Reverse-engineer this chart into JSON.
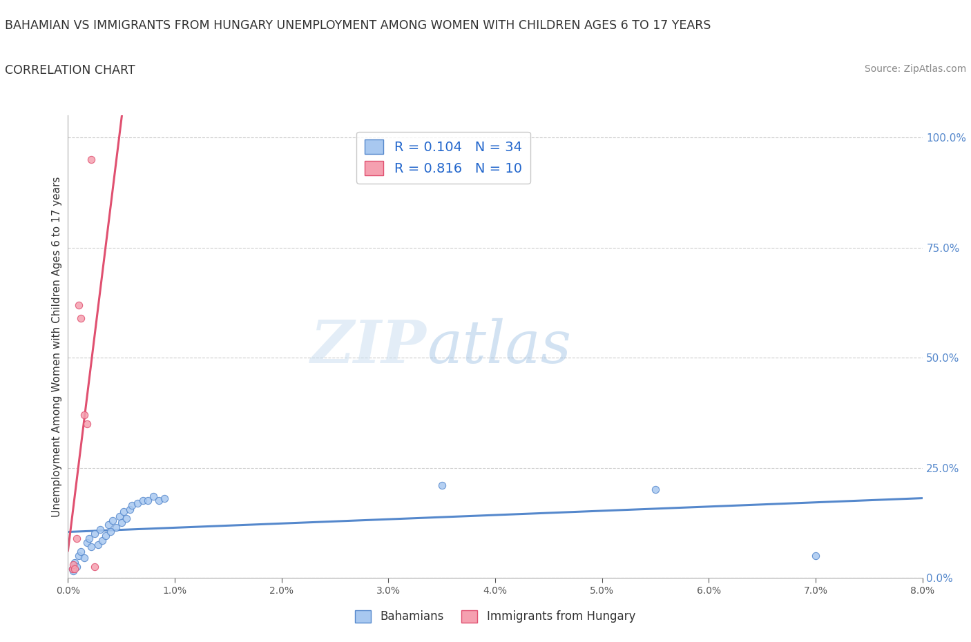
{
  "title_line1": "BAHAMIAN VS IMMIGRANTS FROM HUNGARY UNEMPLOYMENT AMONG WOMEN WITH CHILDREN AGES 6 TO 17 YEARS",
  "title_line2": "CORRELATION CHART",
  "source_text": "Source: ZipAtlas.com",
  "ylabel": "Unemployment Among Women with Children Ages 6 to 17 years",
  "xlim": [
    0.0,
    0.08
  ],
  "ylim": [
    0.0,
    1.05
  ],
  "xticks": [
    0.0,
    0.01,
    0.02,
    0.03,
    0.04,
    0.05,
    0.06,
    0.07,
    0.08
  ],
  "xtick_labels": [
    "0.0%",
    "1.0%",
    "2.0%",
    "3.0%",
    "4.0%",
    "5.0%",
    "6.0%",
    "7.0%",
    "8.0%"
  ],
  "yticks": [
    0.0,
    0.25,
    0.5,
    0.75,
    1.0
  ],
  "ytick_labels": [
    "0.0%",
    "25.0%",
    "50.0%",
    "75.0%",
    "100.0%"
  ],
  "bahamian_x": [
    0.0004,
    0.0005,
    0.0006,
    0.0008,
    0.001,
    0.0012,
    0.0015,
    0.0018,
    0.002,
    0.0022,
    0.0025,
    0.0028,
    0.003,
    0.0032,
    0.0035,
    0.0038,
    0.004,
    0.0042,
    0.0045,
    0.0048,
    0.005,
    0.0052,
    0.0055,
    0.0058,
    0.006,
    0.0065,
    0.007,
    0.0075,
    0.008,
    0.0085,
    0.009,
    0.035,
    0.055,
    0.07
  ],
  "bahamian_y": [
    0.02,
    0.015,
    0.035,
    0.025,
    0.05,
    0.06,
    0.045,
    0.08,
    0.09,
    0.07,
    0.1,
    0.075,
    0.11,
    0.085,
    0.095,
    0.12,
    0.105,
    0.13,
    0.115,
    0.14,
    0.125,
    0.15,
    0.135,
    0.155,
    0.165,
    0.17,
    0.175,
    0.175,
    0.185,
    0.175,
    0.18,
    0.21,
    0.2,
    0.05
  ],
  "hungary_x": [
    0.0004,
    0.0005,
    0.0006,
    0.0008,
    0.001,
    0.0012,
    0.0015,
    0.0018,
    0.0022,
    0.0025
  ],
  "hungary_y": [
    0.02,
    0.03,
    0.02,
    0.09,
    0.62,
    0.59,
    0.37,
    0.35,
    0.95,
    0.025
  ],
  "bahamian_color": "#a8c8f0",
  "hungary_color": "#f5a0b0",
  "bahamian_line_color": "#5588cc",
  "hungary_line_color": "#e05070",
  "R_bahamian": 0.104,
  "N_bahamian": 34,
  "R_hungary": 0.816,
  "N_hungary": 10,
  "legend_label_1": "Bahamians",
  "legend_label_2": "Immigrants from Hungary",
  "watermark_zip": "ZIP",
  "watermark_atlas": "atlas",
  "background_color": "#ffffff",
  "grid_color": "#cccccc"
}
